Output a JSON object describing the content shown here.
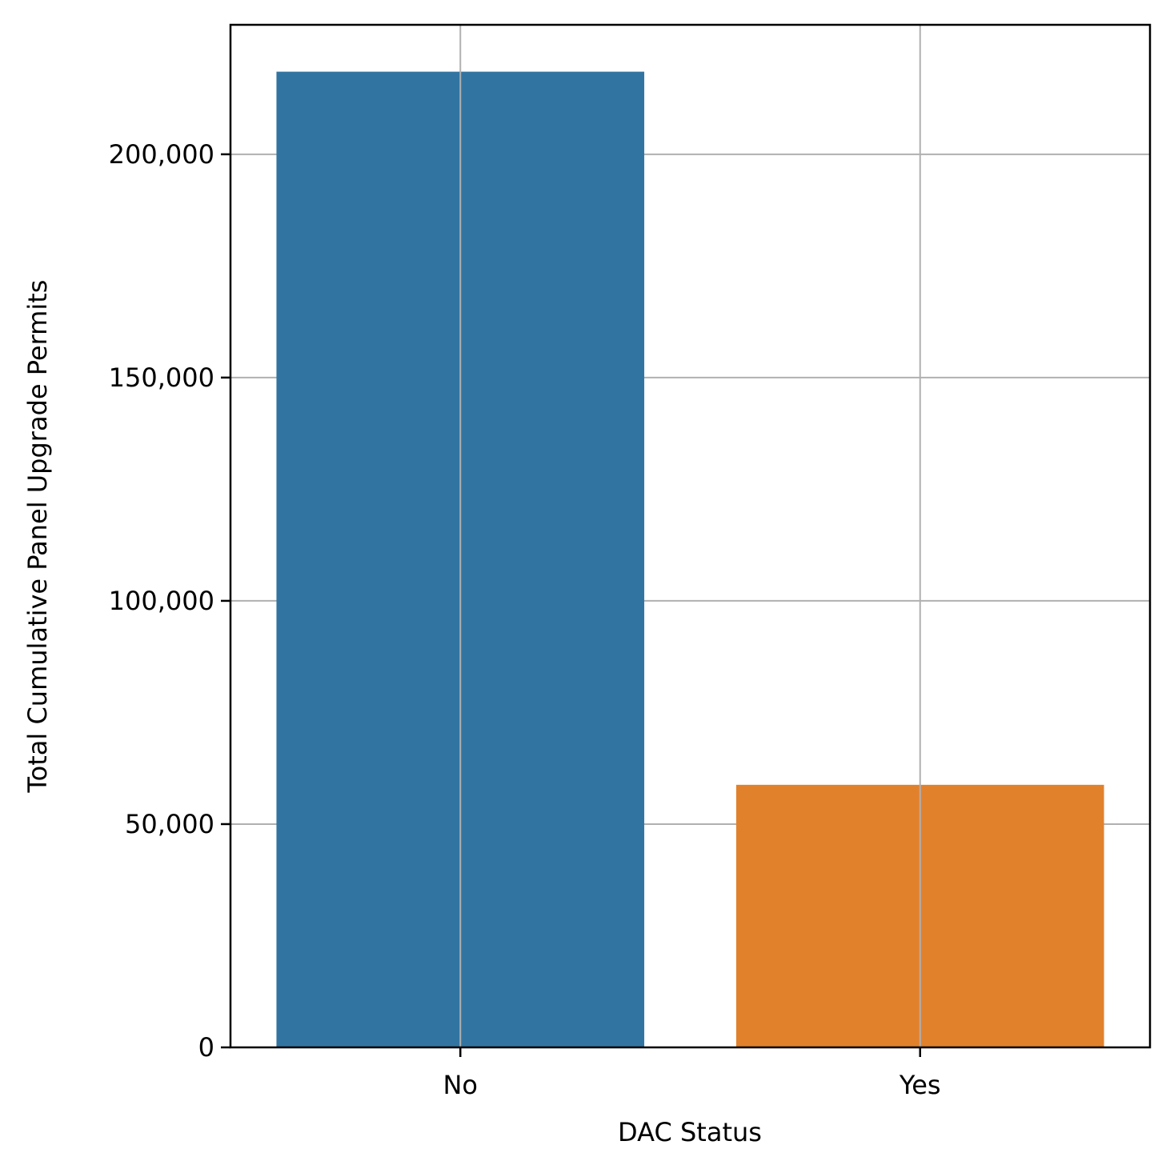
{
  "chart_data": {
    "type": "bar",
    "categories": [
      "No",
      "Yes"
    ],
    "values": [
      218500,
      58800
    ],
    "colors": [
      "#3274a1",
      "#e1812c"
    ],
    "xlabel": "DAC Status",
    "ylabel": "Total Cumulative Panel Upgrade Permits",
    "ylim": [
      0,
      229000
    ],
    "yticks": [
      0,
      50000,
      100000,
      150000,
      200000
    ],
    "ytick_labels": [
      "0",
      "50,000",
      "100,000",
      "150,000",
      "200,000"
    ],
    "grid": true
  }
}
